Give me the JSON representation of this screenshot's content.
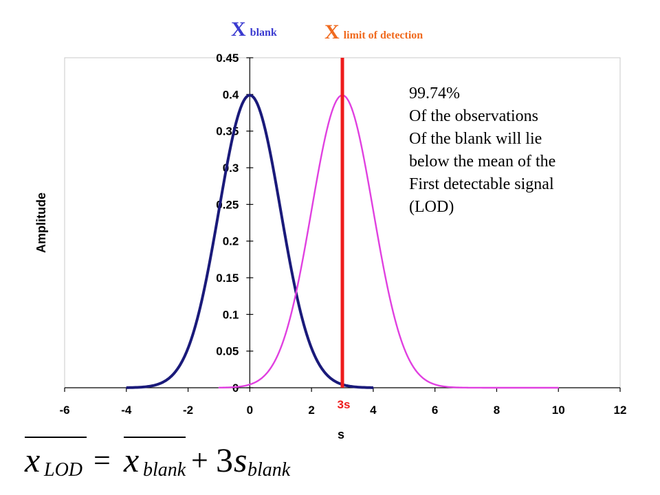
{
  "annotations": {
    "x_blank_main": "X",
    "x_blank_sub": "blank",
    "x_lod_main": "X",
    "x_lod_sub": "limit of detection",
    "note_lines": [
      "99.74%",
      "Of the observations",
      "Of the blank will lie",
      "below the mean of the",
      "First detectable signal",
      "(LOD)"
    ],
    "marker_label": "3s"
  },
  "formula": {
    "lhs_base": "x",
    "lhs_sub": "LOD",
    "equals": "=",
    "term1_base": "x",
    "term1_sub": "blank",
    "plus": "+",
    "coef": "3",
    "term2_base": "s",
    "term2_sub": "blank"
  },
  "colors": {
    "blank_curve": "#1a1a7a",
    "lod_curve": "#e040e0",
    "lod_line": "#ee1c1c",
    "x_blank_text": "#3b3bd0",
    "x_lod_text": "#f06a1e"
  },
  "chart_data": {
    "type": "line",
    "xlabel": "s",
    "ylabel": "Amplitude",
    "xlim": [
      -6,
      12
    ],
    "ylim": [
      0,
      0.45
    ],
    "x_ticks": [
      "-6",
      "-4",
      "-2",
      "0",
      "2",
      "4",
      "6",
      "8",
      "10",
      "12"
    ],
    "y_ticks": [
      "0",
      "0.05",
      "0.1",
      "0.15",
      "0.2",
      "0.25",
      "0.3",
      "0.35",
      "0.4",
      "0.45"
    ],
    "grid": false,
    "series": [
      {
        "color": "#1a1a7a",
        "x": [
          -4,
          -3.5,
          -3,
          -2.5,
          -2,
          -1.5,
          -1,
          -0.5,
          0,
          0.5,
          1,
          1.5,
          2,
          2.5,
          3,
          3.5,
          4
        ],
        "y": [
          0.0001,
          0.0009,
          0.0044,
          0.0175,
          0.054,
          0.1295,
          0.242,
          0.3521,
          0.3989,
          0.3521,
          0.242,
          0.1295,
          0.054,
          0.0175,
          0.0044,
          0.0009,
          0.0001
        ]
      },
      {
        "color": "#e040e0",
        "x": [
          -1,
          -0.5,
          0,
          0.5,
          1,
          1.5,
          2,
          2.5,
          3,
          3.5,
          4,
          4.5,
          5,
          5.5,
          6,
          6.5,
          7,
          8,
          9,
          10
        ],
        "y": [
          0.0001,
          0.0009,
          0.0044,
          0.0175,
          0.054,
          0.1295,
          0.242,
          0.3521,
          0.3989,
          0.3521,
          0.242,
          0.1295,
          0.054,
          0.0175,
          0.0044,
          0.0009,
          0.0001,
          0,
          0,
          0
        ]
      }
    ],
    "vertical_line": {
      "x": 3,
      "y_top": 0.45,
      "label": "3s"
    }
  }
}
